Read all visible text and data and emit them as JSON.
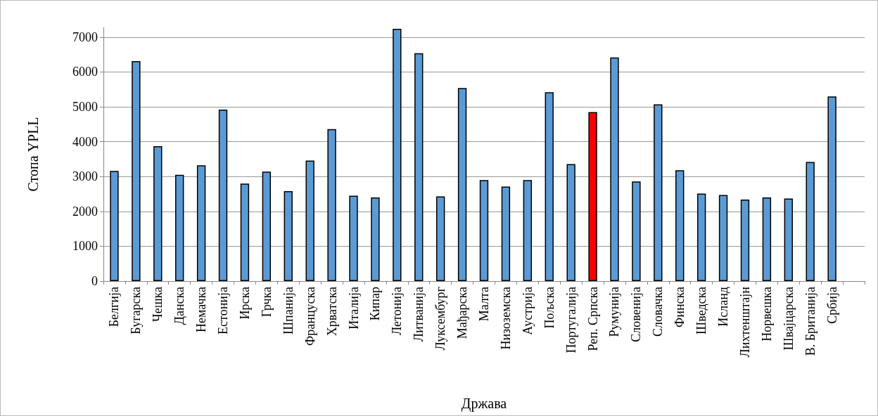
{
  "chart_data": {
    "type": "bar",
    "xlabel": "Држава",
    "ylabel": "Стопа YPLL",
    "categories": [
      "Белгија",
      "Бугарска",
      "Чешка",
      "Данска",
      "Немачка",
      "Естонија",
      "Ирска",
      "Грчка",
      "Шпанија",
      "Француска",
      "Хрватска",
      "Италија",
      "Кипар",
      "Летонија",
      "Литванија",
      "Луксембург",
      "Мађарска",
      "Малта",
      "Низоземска",
      "Аустрија",
      "Пољска",
      "Португалија",
      "Реп. Српска",
      "Румунија",
      "Словенија",
      "Словачка",
      "Финска",
      "Шведска",
      "Исланд",
      "Лихтенштајн",
      "Норвешка",
      "Швајцарска",
      "В. Британија",
      "Србија",
      null
    ],
    "values": [
      3160,
      6310,
      3870,
      3050,
      3320,
      4920,
      2800,
      3140,
      2580,
      3460,
      4360,
      2450,
      2400,
      7240,
      6540,
      2430,
      5540,
      2900,
      2710,
      2900,
      5420,
      3360,
      4850,
      6420,
      2860,
      5070,
      3180,
      2510,
      2470,
      2340,
      2400,
      2370,
      3420,
      5300,
      null
    ],
    "colors": [
      "#5b9bd5",
      "#5b9bd5",
      "#5b9bd5",
      "#5b9bd5",
      "#5b9bd5",
      "#5b9bd5",
      "#5b9bd5",
      "#5b9bd5",
      "#5b9bd5",
      "#5b9bd5",
      "#5b9bd5",
      "#5b9bd5",
      "#5b9bd5",
      "#5b9bd5",
      "#5b9bd5",
      "#5b9bd5",
      "#5b9bd5",
      "#5b9bd5",
      "#5b9bd5",
      "#5b9bd5",
      "#5b9bd5",
      "#5b9bd5",
      "#ff0000",
      "#5b9bd5",
      "#5b9bd5",
      "#5b9bd5",
      "#5b9bd5",
      "#5b9bd5",
      "#5b9bd5",
      "#5b9bd5",
      "#5b9bd5",
      "#5b9bd5",
      "#5b9bd5",
      "#5b9bd5",
      "#5b9bd5"
    ],
    "ylim": [
      0,
      7280
    ],
    "yticks": [
      0,
      1000,
      2000,
      3000,
      4000,
      5000,
      6000,
      7000
    ],
    "grid": "y"
  }
}
